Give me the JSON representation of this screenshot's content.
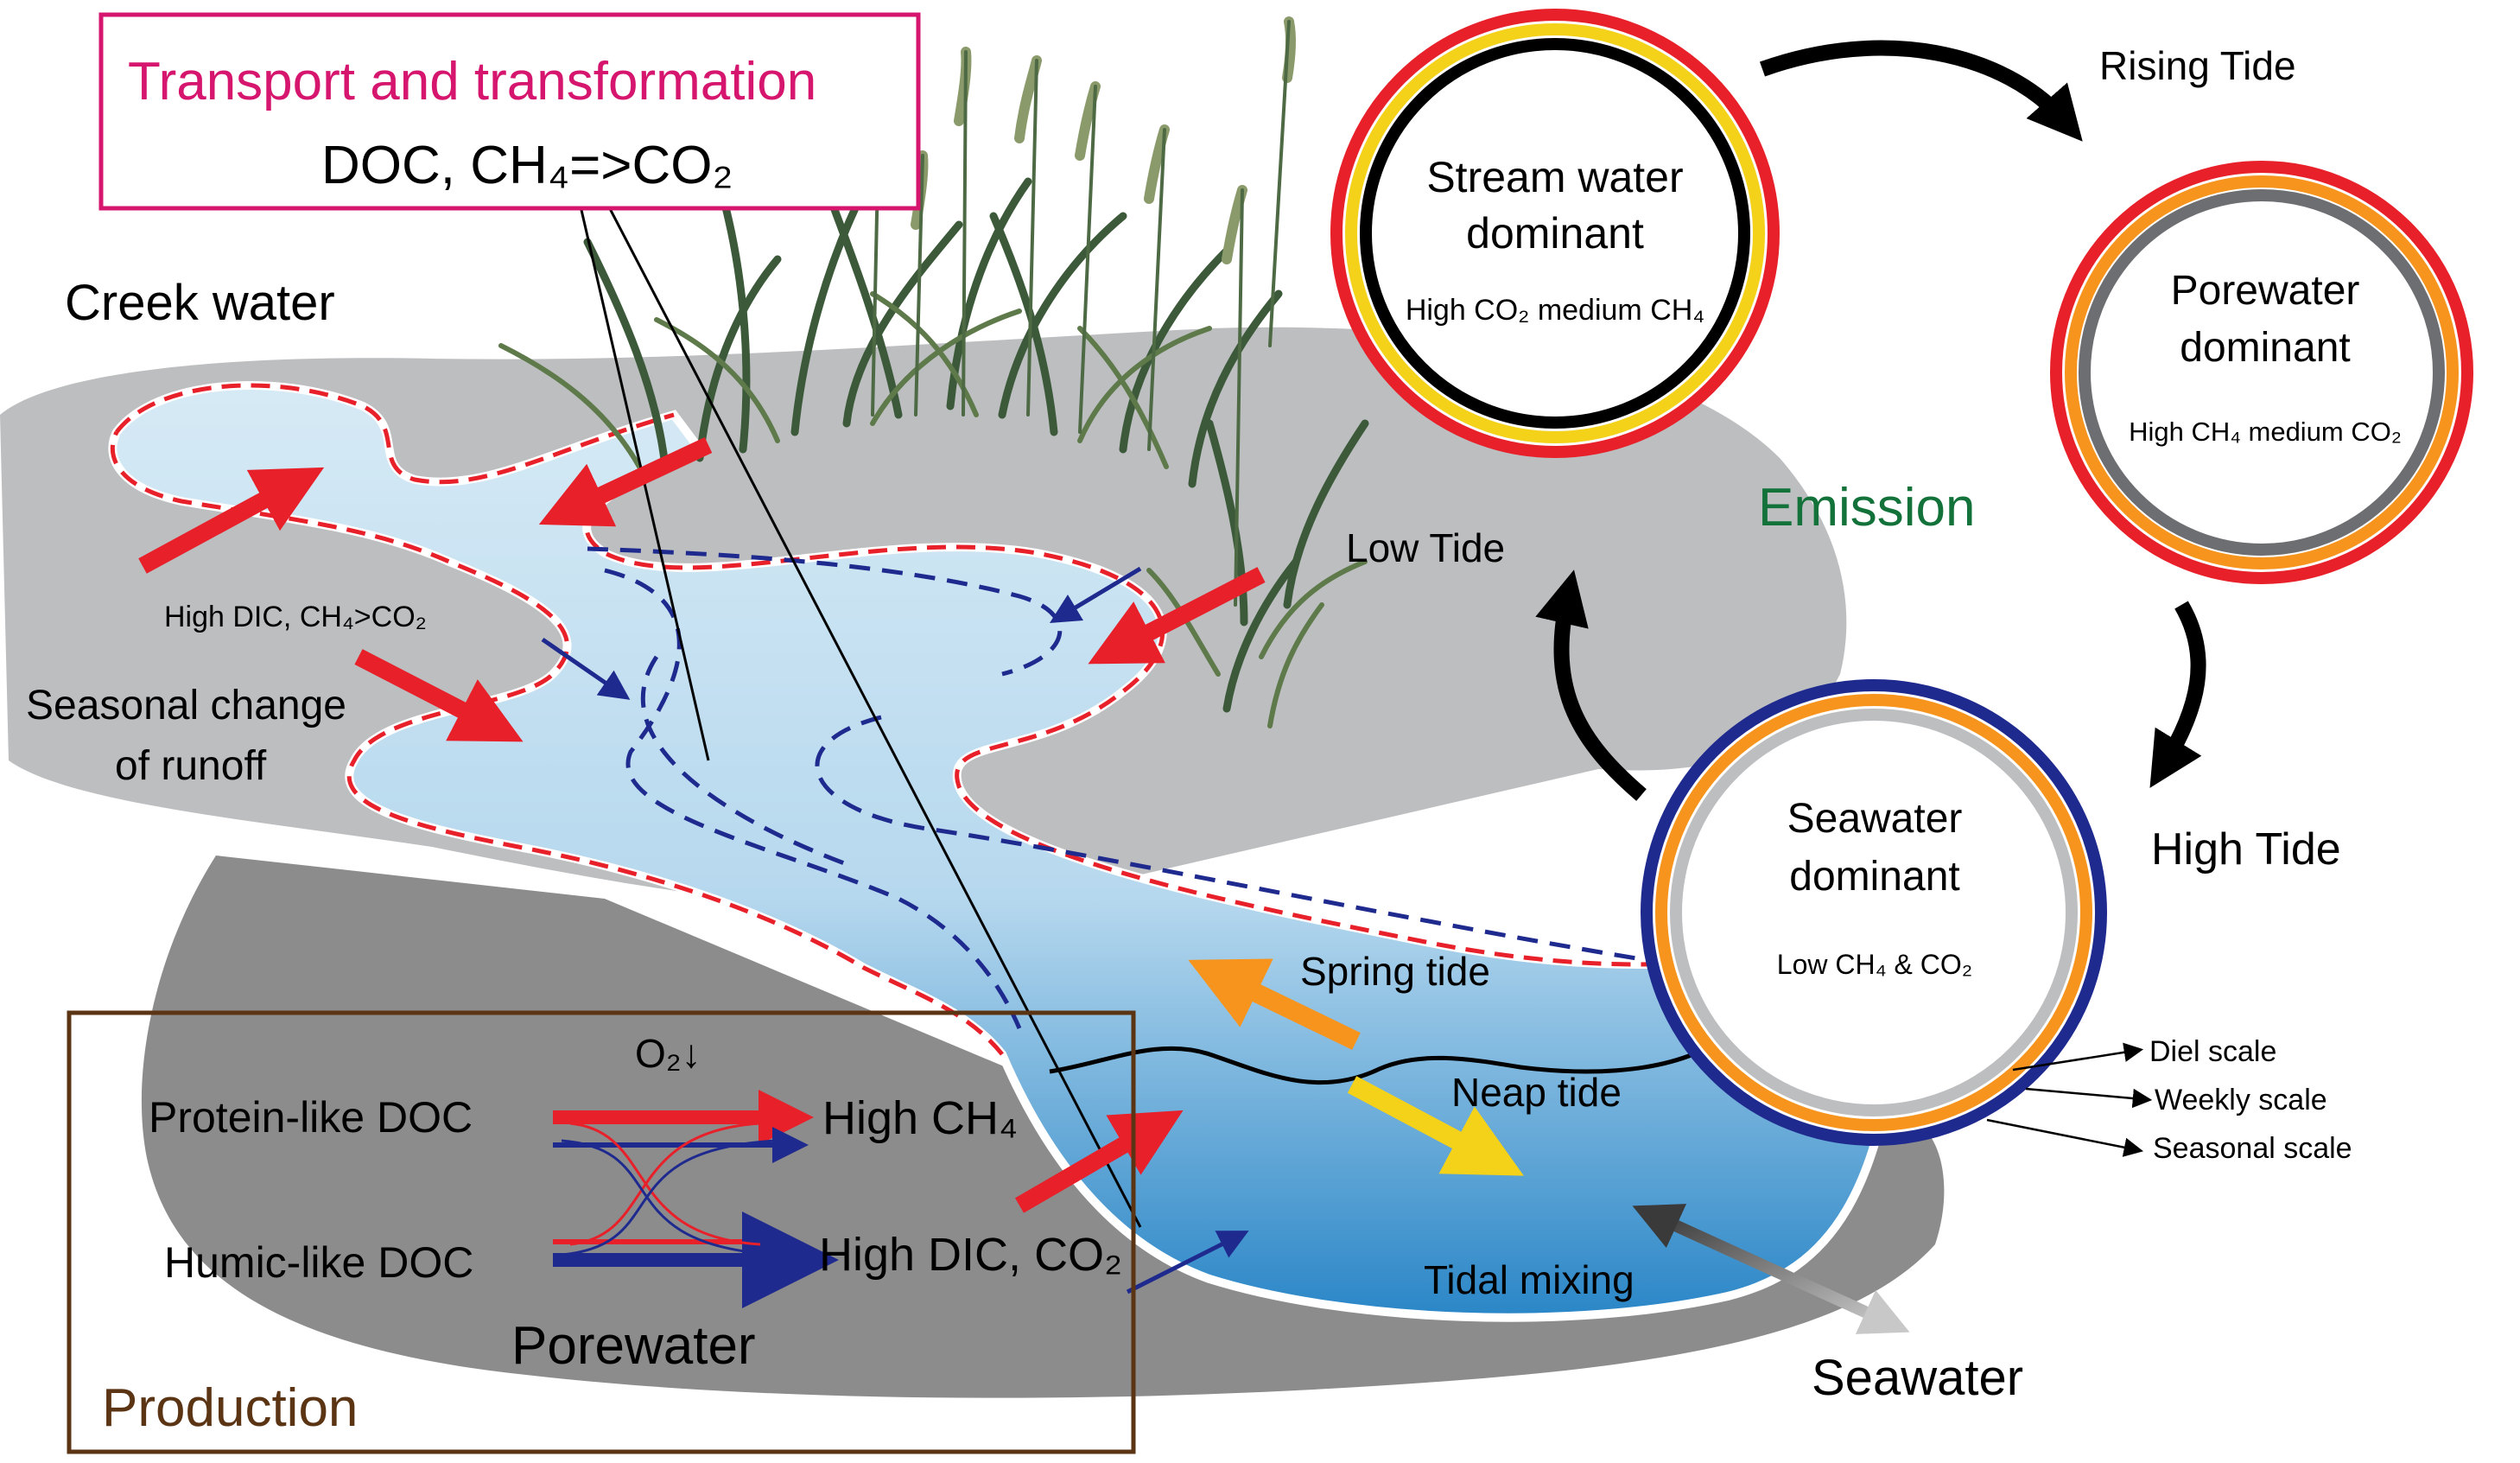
{
  "colors": {
    "title_magenta": "#d6166e",
    "production_brown": "#5b3414",
    "emission_green": "#13713a",
    "arrow_red": "#e8202a",
    "arrow_navy": "#1f2a8f",
    "arrow_orange": "#f7941d",
    "arrow_yellow": "#f4d21a",
    "water_light": "#d3e8f3",
    "water_deep": "#2a86c7",
    "land_light": "#bcbec0",
    "land_dark": "#8c8c8c"
  },
  "transport_box": {
    "title": "Transport and transformation",
    "subtitle": "DOC, CH₄=>CO₂"
  },
  "labels": {
    "creek_water": "Creek water",
    "high_dic": "High DIC, CH₄>CO₂",
    "seasonal_line1": "Seasonal change",
    "seasonal_line2": "of runoff",
    "spring_tide": "Spring tide",
    "neap_tide": "Neap tide",
    "tidal_mixing": "Tidal mixing",
    "seawater": "Seawater",
    "emission": "Emission",
    "low_tide": "Low Tide",
    "rising_tide": "Rising Tide",
    "high_tide": "High Tide"
  },
  "production_box": {
    "title": "Production",
    "o2": "O₂↓",
    "protein_doc": "Protein-like DOC",
    "humic_doc": "Humic-like DOC",
    "high_ch4": "High CH₄",
    "high_dic_co2": "High DIC, CO₂",
    "porewater": "Porewater"
  },
  "circles": {
    "stream": {
      "line1": "Stream water",
      "line2": "dominant",
      "detail": "High CO₂ medium CH₄"
    },
    "porewater": {
      "line1": "Porewater",
      "line2": "dominant",
      "detail": "High CH₄ medium CO₂"
    },
    "seawater": {
      "line1": "Seawater",
      "line2": "dominant",
      "detail": "Low CH₄ & CO₂"
    }
  },
  "scales": {
    "diel": "Diel scale",
    "weekly": "Weekly scale",
    "seasonal": "Seasonal scale"
  }
}
